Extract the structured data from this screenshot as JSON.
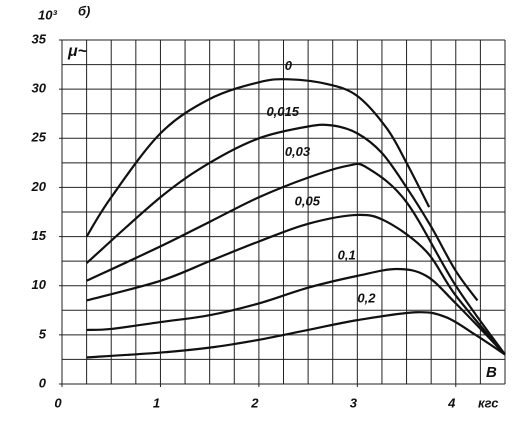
{
  "chart_data": {
    "type": "line",
    "annotation": "б)",
    "y_multiplier": "10³",
    "ylabel": "μ~",
    "xlabel": "B",
    "x_unit": "кгс",
    "xlim": [
      0,
      4.5
    ],
    "ylim": [
      0,
      35
    ],
    "xticks": [
      0,
      1,
      2,
      3,
      4
    ],
    "yticks": [
      0,
      5,
      10,
      15,
      20,
      25,
      30,
      35
    ],
    "xgrid": [
      0.25,
      0.5,
      0.75,
      1,
      1.25,
      1.5,
      1.75,
      2,
      2.25,
      2.5,
      2.75,
      3,
      3.25,
      3.5,
      3.75,
      4,
      4.25,
      4.5
    ],
    "ygrid": [
      2.5,
      5,
      7.5,
      10,
      12.5,
      15,
      17.5,
      20,
      22.5,
      25,
      27.5,
      30,
      32.5,
      35
    ],
    "color": "#111111",
    "series": [
      {
        "name": "0",
        "x": [
          0.25,
          0.5,
          1,
          1.5,
          2,
          2.3,
          2.7,
          3,
          3.3,
          3.5,
          3.73
        ],
        "values": [
          15,
          19,
          25.5,
          29,
          30.7,
          31,
          30.5,
          29.3,
          26,
          22.5,
          18
        ]
      },
      {
        "name": "0,015",
        "x": [
          0.25,
          1,
          1.5,
          2,
          2.5,
          2.75,
          3,
          3.25,
          3.5,
          3.75,
          4,
          4.22
        ],
        "values": [
          12.3,
          19,
          22.5,
          25,
          26.2,
          26.3,
          25.5,
          23.5,
          20,
          16,
          11.5,
          8.5
        ]
      },
      {
        "name": "0,03",
        "x": [
          0.25,
          1,
          1.5,
          2,
          2.5,
          2.9,
          3.1,
          3.5,
          4,
          4.5
        ],
        "values": [
          10.5,
          14,
          16.5,
          19,
          21,
          22.2,
          22,
          18.5,
          10,
          3
        ]
      },
      {
        "name": "0,05",
        "x": [
          0.25,
          1,
          1.5,
          2,
          2.5,
          3,
          3.3,
          3.7,
          4,
          4.5
        ],
        "values": [
          8.5,
          10.5,
          12.5,
          14.5,
          16.3,
          17.2,
          16.5,
          13.5,
          9,
          3
        ]
      },
      {
        "name": "0,1",
        "x": [
          0.25,
          0.5,
          1,
          1.5,
          2,
          2.5,
          3,
          3.4,
          3.7,
          4,
          4.5
        ],
        "values": [
          5.5,
          5.6,
          6.3,
          7,
          8.2,
          9.8,
          11,
          11.7,
          11,
          8.2,
          3
        ]
      },
      {
        "name": "0,2",
        "x": [
          0.25,
          1,
          1.5,
          2,
          2.5,
          3,
          3.6,
          3.9,
          4.2,
          4.5
        ],
        "values": [
          2.7,
          3.2,
          3.7,
          4.5,
          5.5,
          6.5,
          7.3,
          6.8,
          5,
          3
        ]
      }
    ]
  }
}
